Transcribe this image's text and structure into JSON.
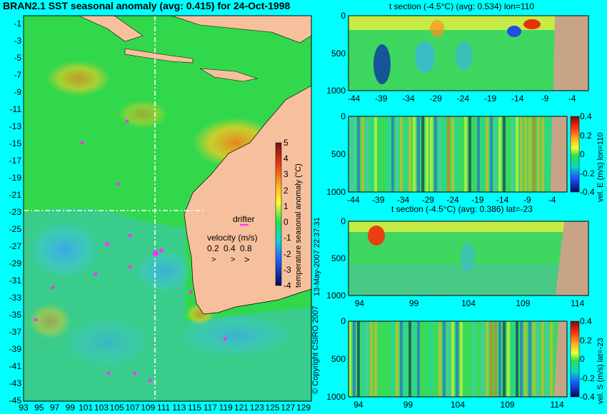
{
  "colors": {
    "background": "#00ffff",
    "land": "#f7c09c",
    "land_section": "#c8a486",
    "dashed_line": "#ffffff",
    "drifter": "#ff30ff"
  },
  "chart_data": [
    {
      "type": "heatmap",
      "title": "BRAN2.1 SST seasonal anomaly (avg: 0.415) for 24-Oct-1998",
      "x_ticks": [
        "93",
        "95",
        "97",
        "99",
        "101",
        "103",
        "105",
        "107",
        "109",
        "111",
        "113",
        "115",
        "117",
        "119",
        "121",
        "123",
        "125",
        "127",
        "129"
      ],
      "y_ticks": [
        "-1",
        "-3",
        "-5",
        "-7",
        "-9",
        "-11",
        "-13",
        "-15",
        "-17",
        "-19",
        "-21",
        "-23",
        "-25",
        "-27",
        "-29",
        "-31",
        "-33",
        "-35",
        "-37",
        "-39",
        "-41",
        "-43",
        "-45"
      ],
      "xlim": [
        93,
        130
      ],
      "ylim": [
        -45,
        0
      ],
      "section_lines": {
        "lon": 110,
        "lat": -23
      },
      "annotations": {
        "drifter": "drifter",
        "velocity_label": "velocity (m/s)",
        "velocity_scale": [
          "0.2",
          "0.4",
          "0.8"
        ]
      },
      "colorbar": {
        "label": "temperature seasonal anomaly (°C)",
        "ticks": [
          "5",
          "4",
          "3",
          "2",
          "1",
          "0",
          "-1",
          "-2",
          "-3",
          "-4"
        ],
        "range": [
          -4,
          5
        ]
      }
    },
    {
      "type": "heatmap",
      "title": "t section (-4.5°C) (avg: 0.534) lon=110",
      "x_ticks": [
        "-44",
        "-39",
        "-34",
        "-29",
        "-24",
        "-19",
        "-14",
        "-9",
        "-4"
      ],
      "y_ticks": [
        "0",
        "500",
        "1000"
      ],
      "xlim": [
        -45,
        -1
      ],
      "ylim": [
        1000,
        0
      ]
    },
    {
      "type": "heatmap",
      "x_ticks": [
        "-44",
        "-39",
        "-34",
        "-29",
        "-24",
        "-19",
        "-14",
        "-9",
        "-4"
      ],
      "y_ticks": [
        "0",
        "500",
        "1000"
      ],
      "xlim": [
        -45,
        -1
      ],
      "ylim": [
        1000,
        0
      ],
      "colorbar": {
        "label": "vel. E (m/s) lon=110",
        "ticks": [
          "0.4",
          "0.2",
          "0",
          "-0.2",
          "-0.4"
        ],
        "range": [
          -0.4,
          0.4
        ]
      }
    },
    {
      "type": "heatmap",
      "title": "t section (-4.5°C) (avg: 0.386) lat=-23",
      "x_ticks": [
        "94",
        "99",
        "104",
        "109",
        "114"
      ],
      "y_ticks": [
        "0",
        "500",
        "1000"
      ],
      "xlim": [
        93,
        115
      ],
      "ylim": [
        1000,
        0
      ]
    },
    {
      "type": "heatmap",
      "x_ticks": [
        "94",
        "99",
        "104",
        "109",
        "114"
      ],
      "y_ticks": [
        "0",
        "500",
        "1000"
      ],
      "xlim": [
        93,
        115
      ],
      "ylim": [
        1000,
        0
      ],
      "colorbar": {
        "label": "vel. S (m/s) lat=-23",
        "ticks": [
          "0.4",
          "0.2",
          "0",
          "-0.2",
          "-0.4"
        ],
        "range": [
          -0.4,
          0.4
        ]
      }
    }
  ],
  "side_text": {
    "timestamp": "13-May-2007 22:37:31",
    "copyright": "© Copyright CSIRO 2007"
  }
}
